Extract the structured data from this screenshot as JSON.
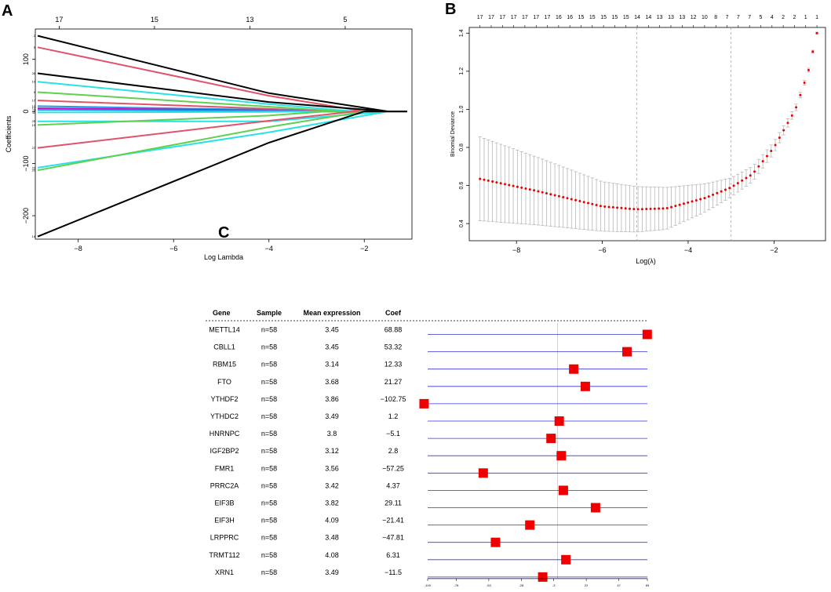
{
  "panels": {
    "a": "A",
    "b": "B",
    "c": "C"
  },
  "chart_data": [
    {
      "id": "A",
      "type": "line",
      "xlabel": "Log Lambda",
      "ylabel": "Coefficients",
      "xlim": [
        -8.9,
        -1.0
      ],
      "ylim": [
        -245,
        158
      ],
      "xticks": [
        -8,
        -6,
        -4,
        -2
      ],
      "yticks": [
        -200,
        -100,
        0,
        100
      ],
      "top_ticks": {
        "positions": [
          -8.4,
          -6.4,
          -4.4,
          -2.4
        ],
        "labels": [
          "17",
          "15",
          "13",
          "5"
        ]
      },
      "series": [
        {
          "name": "2",
          "color": "#000000",
          "start": 145,
          "mid": 35,
          "knot": -1.5
        },
        {
          "name": "5",
          "color": "#DF536B",
          "start": 123,
          "mid": 30,
          "knot": -2.0
        },
        {
          "name": "26",
          "color": "#000000",
          "start": 73,
          "mid": 18,
          "knot": -1.5
        },
        {
          "name": "10",
          "color": "#28E2E5",
          "start": 57,
          "mid": 14,
          "knot": -2.2
        },
        {
          "name": "9",
          "color": "#61D04F",
          "start": 37,
          "mid": 9,
          "knot": -2.5
        },
        {
          "name": "17",
          "color": "#DF536B",
          "start": 21,
          "mid": 5,
          "knot": -2.8
        },
        {
          "name": "13",
          "color": "#2297E6",
          "start": 10,
          "mid": 3,
          "knot": -3.0
        },
        {
          "name": "12",
          "color": "#CD0BBC",
          "start": 6,
          "mid": 2,
          "knot": -3.0
        },
        {
          "name": "3",
          "color": "#2297E6",
          "start": 3,
          "mid": 1,
          "knot": -3.0
        },
        {
          "name": "11",
          "color": "#28E2E5",
          "start": -2,
          "mid": -1,
          "knot": -3.0
        },
        {
          "name": "25",
          "color": "#28E2E5",
          "start": -19,
          "mid": -19,
          "knot": -1.5
        },
        {
          "name": "19",
          "color": "#61D04F",
          "start": -26,
          "mid": -8,
          "knot": -2.8
        },
        {
          "name": "27",
          "color": "#DF536B",
          "start": -70,
          "mid": -18,
          "knot": -2.2
        },
        {
          "name": "23",
          "color": "#28E2E5",
          "start": -108,
          "mid": -40,
          "knot": -1.5
        },
        {
          "name": "20",
          "color": "#61D04F",
          "start": -113,
          "mid": -30,
          "knot": -2.0
        },
        {
          "name": "14",
          "color": "#000000",
          "start": -240,
          "mid": -60,
          "knot": -2.0
        }
      ]
    },
    {
      "id": "B",
      "type": "scatter",
      "xlabel": "Log(λ)",
      "ylabel": "Binomial Deviance",
      "xlim": [
        -9.1,
        -0.8
      ],
      "ylim": [
        0.31,
        1.43
      ],
      "xticks": [
        -8,
        -6,
        -4,
        -2
      ],
      "yticks": [
        0.4,
        0.6,
        0.8,
        1.0,
        1.2,
        1.4
      ],
      "lambda_min": -5.2,
      "lambda_1se": -3.0,
      "x_start": -8.85,
      "x_end": -1.0,
      "n_points": 82,
      "top_labels": [
        "17",
        "17",
        "17",
        "17",
        "17",
        "17",
        "17",
        "16",
        "16",
        "15",
        "15",
        "15",
        "15",
        "15",
        "14",
        "14",
        "13",
        "13",
        "13",
        "12",
        "10",
        "8",
        "7",
        "7",
        "7",
        "5",
        "4",
        "2",
        "2",
        "1",
        "1"
      ],
      "curve_points": [
        [
          -8.85,
          0.635
        ],
        [
          -7.5,
          0.57
        ],
        [
          -6.0,
          0.49
        ],
        [
          -5.2,
          0.475
        ],
        [
          -4.5,
          0.48
        ],
        [
          -3.6,
          0.535
        ],
        [
          -3.0,
          0.59
        ],
        [
          -2.5,
          0.66
        ],
        [
          -2.0,
          0.8
        ],
        [
          -1.5,
          1.0
        ],
        [
          -1.2,
          1.2
        ],
        [
          -1.0,
          1.4
        ]
      ],
      "half_width_points": [
        [
          -8.85,
          0.22
        ],
        [
          -6.0,
          0.13
        ],
        [
          -4.5,
          0.11
        ],
        [
          -3.0,
          0.05
        ],
        [
          -2.0,
          0.03
        ],
        [
          -1.0,
          0.005
        ]
      ]
    },
    {
      "id": "C",
      "type": "scatter",
      "xlim": [
        -100,
        69
      ],
      "xticks": [
        -100,
        -78,
        -53,
        -28,
        -3,
        22,
        47,
        69
      ],
      "xtick_labels": [
        "-100",
        "-78",
        "-53",
        "-28",
        "-3",
        "22",
        "47",
        "69"
      ],
      "reference_line": 0,
      "columns": [
        "Gene",
        "Sample",
        "Mean expression",
        "Coef"
      ],
      "rows": [
        {
          "gene": "METTL14",
          "sample": "n=58",
          "mean": "3.45",
          "coef_text": "68.88",
          "coef": 68.88
        },
        {
          "gene": "CBLL1",
          "sample": "n=58",
          "mean": "3.45",
          "coef_text": "53.32",
          "coef": 53.32
        },
        {
          "gene": "RBM15",
          "sample": "n=58",
          "mean": "3.14",
          "coef_text": "12.33",
          "coef": 12.33
        },
        {
          "gene": "FTO",
          "sample": "n=58",
          "mean": "3.68",
          "coef_text": "21.27",
          "coef": 21.27
        },
        {
          "gene": "YTHDF2",
          "sample": "n=58",
          "mean": "3.86",
          "coef_text": "−102.75",
          "coef": -102.75
        },
        {
          "gene": "YTHDC2",
          "sample": "n=58",
          "mean": "3.49",
          "coef_text": "1.2",
          "coef": 1.2
        },
        {
          "gene": "HNRNPC",
          "sample": "n=58",
          "mean": "3.8",
          "coef_text": "−5.1",
          "coef": -5.1
        },
        {
          "gene": "IGF2BP2",
          "sample": "n=58",
          "mean": "3.12",
          "coef_text": "2.8",
          "coef": 2.8
        },
        {
          "gene": "FMR1",
          "sample": "n=58",
          "mean": "3.56",
          "coef_text": "−57.25",
          "coef": -57.25
        },
        {
          "gene": "PRRC2A",
          "sample": "n=58",
          "mean": "3.42",
          "coef_text": "4.37",
          "coef": 4.37
        },
        {
          "gene": "EIF3B",
          "sample": "n=58",
          "mean": "3.82",
          "coef_text": "29.11",
          "coef": 29.11
        },
        {
          "gene": "EIF3H",
          "sample": "n=58",
          "mean": "4.09",
          "coef_text": "−21.41",
          "coef": -21.41
        },
        {
          "gene": "LRPPRC",
          "sample": "n=58",
          "mean": "3.48",
          "coef_text": "−47.81",
          "coef": -47.81
        },
        {
          "gene": "TRMT112",
          "sample": "n=58",
          "mean": "4.08",
          "coef_text": "6.31",
          "coef": 6.31
        },
        {
          "gene": "XRN1",
          "sample": "n=58",
          "mean": "3.49",
          "coef_text": "−11.5",
          "coef": -11.5
        }
      ]
    }
  ],
  "colors": {
    "black": "#000000",
    "red": "#ee0000",
    "gray": "#b8b8b8",
    "blue": "#3333dd",
    "refline": "#bbbbbb"
  }
}
